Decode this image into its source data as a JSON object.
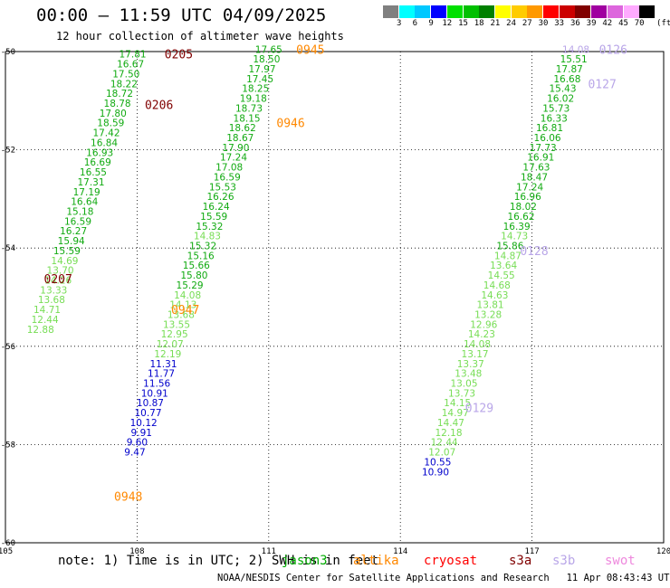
{
  "header": {
    "title": "00:00 — 11:59 UTC 04/09/2025",
    "subtitle": "12 hour collection of altimeter wave heights"
  },
  "colorbar": {
    "unit": "(ft)",
    "ticks": [
      "3",
      "6",
      "9",
      "12",
      "15",
      "18",
      "21",
      "24",
      "27",
      "30",
      "33",
      "36",
      "39",
      "42",
      "45",
      "70"
    ],
    "colors": [
      "#808080",
      "#00ffff",
      "#00c8ff",
      "#0000ff",
      "#00e000",
      "#00c000",
      "#008000",
      "#ffff00",
      "#ffcc00",
      "#ff9900",
      "#ff0000",
      "#cc0000",
      "#800000",
      "#a000a0",
      "#dd66dd",
      "#ffaaff",
      "#000000"
    ]
  },
  "axes": {
    "lat_labels": [
      "-50",
      "-52",
      "-54",
      "-56",
      "-58",
      "-60"
    ],
    "lon_labels": [
      "105",
      "108",
      "111",
      "114",
      "117",
      "120"
    ]
  },
  "note": "note: 1) Time is in UTC; 2) SWH is in feet",
  "legend": [
    {
      "name": "jason3",
      "color": "#00aa00"
    },
    {
      "name": "altika",
      "color": "#ff8800"
    },
    {
      "name": "cryosat",
      "color": "#ff0000"
    },
    {
      "name": "s3a",
      "color": "#800000"
    },
    {
      "name": "s3b",
      "color": "#b9a6e8"
    },
    {
      "name": "swot",
      "color": "#ee88dd"
    }
  ],
  "footer": "NOAA/NESDIS Center for Satellite Applications and Research   11 Apr 08:43:43 UTC 2025",
  "colors": {
    "green": "#11aa11",
    "lightgreen": "#77dd55",
    "blue": "#0000cc",
    "darkred": "#800000",
    "orange": "#ff8800",
    "lavender": "#b9a6e8"
  },
  "tracks": [
    {
      "id": "s3a",
      "labels": [
        {
          "text": "0205",
          "lat": -50.05,
          "lon": 108.95
        },
        {
          "text": "0206",
          "lat": -51.08,
          "lon": 108.5
        },
        {
          "text": "0207",
          "lat": -54.62,
          "lon": 106.2
        }
      ],
      "points": [
        {
          "lat": -50.05,
          "lon": 107.9,
          "v": "17.81",
          "c": "green"
        },
        {
          "lat": -50.25,
          "lon": 107.85,
          "v": "16.67",
          "c": "green"
        },
        {
          "lat": -50.45,
          "lon": 107.75,
          "v": "17.50",
          "c": "green"
        },
        {
          "lat": -50.65,
          "lon": 107.7,
          "v": "18.22",
          "c": "green"
        },
        {
          "lat": -50.85,
          "lon": 107.6,
          "v": "18.72",
          "c": "green"
        },
        {
          "lat": -51.05,
          "lon": 107.55,
          "v": "18.78",
          "c": "green"
        },
        {
          "lat": -51.25,
          "lon": 107.45,
          "v": "17.80",
          "c": "green"
        },
        {
          "lat": -51.45,
          "lon": 107.4,
          "v": "18.59",
          "c": "green"
        },
        {
          "lat": -51.65,
          "lon": 107.3,
          "v": "17.42",
          "c": "green"
        },
        {
          "lat": -51.85,
          "lon": 107.25,
          "v": "16.84",
          "c": "green"
        },
        {
          "lat": -52.05,
          "lon": 107.15,
          "v": "16.93",
          "c": "green"
        },
        {
          "lat": -52.25,
          "lon": 107.1,
          "v": "16.69",
          "c": "green"
        },
        {
          "lat": -52.45,
          "lon": 107.0,
          "v": "16.55",
          "c": "green"
        },
        {
          "lat": -52.65,
          "lon": 106.95,
          "v": "17.31",
          "c": "green"
        },
        {
          "lat": -52.85,
          "lon": 106.85,
          "v": "17.19",
          "c": "green"
        },
        {
          "lat": -53.05,
          "lon": 106.8,
          "v": "16.64",
          "c": "green"
        },
        {
          "lat": -53.25,
          "lon": 106.7,
          "v": "15.18",
          "c": "green"
        },
        {
          "lat": -53.45,
          "lon": 106.65,
          "v": "16.59",
          "c": "green"
        },
        {
          "lat": -53.65,
          "lon": 106.55,
          "v": "16.27",
          "c": "green"
        },
        {
          "lat": -53.85,
          "lon": 106.5,
          "v": "15.94",
          "c": "green"
        },
        {
          "lat": -54.05,
          "lon": 106.4,
          "v": "15.59",
          "c": "green"
        },
        {
          "lat": -54.25,
          "lon": 106.35,
          "v": "14.69",
          "c": "lightgreen"
        },
        {
          "lat": -54.45,
          "lon": 106.25,
          "v": "13.70",
          "c": "lightgreen"
        },
        {
          "lat": -54.65,
          "lon": 106.2,
          "v": "14.26",
          "c": "lightgreen"
        },
        {
          "lat": -54.85,
          "lon": 106.1,
          "v": "13.33",
          "c": "lightgreen"
        },
        {
          "lat": -55.05,
          "lon": 106.05,
          "v": "13.68",
          "c": "lightgreen"
        },
        {
          "lat": -55.25,
          "lon": 105.95,
          "v": "14.71",
          "c": "lightgreen"
        },
        {
          "lat": -55.45,
          "lon": 105.9,
          "v": "12.44",
          "c": "lightgreen"
        },
        {
          "lat": -55.65,
          "lon": 105.8,
          "v": "12.88",
          "c": "lightgreen"
        }
      ]
    },
    {
      "id": "altika",
      "labels": [
        {
          "text": "0945",
          "lat": -49.95,
          "lon": 111.95
        },
        {
          "text": "0946",
          "lat": -51.45,
          "lon": 111.5
        },
        {
          "text": "0947",
          "lat": -55.25,
          "lon": 109.1
        },
        {
          "text": "0948",
          "lat": -59.05,
          "lon": 107.8
        }
      ],
      "points": [
        {
          "lat": -49.95,
          "lon": 111.0,
          "v": "17.65",
          "c": "green"
        },
        {
          "lat": -50.15,
          "lon": 110.95,
          "v": "18.50",
          "c": "green"
        },
        {
          "lat": -50.35,
          "lon": 110.85,
          "v": "17.97",
          "c": "green"
        },
        {
          "lat": -50.55,
          "lon": 110.8,
          "v": "17.45",
          "c": "green"
        },
        {
          "lat": -50.75,
          "lon": 110.7,
          "v": "18.25",
          "c": "green"
        },
        {
          "lat": -50.95,
          "lon": 110.65,
          "v": "19.18",
          "c": "green"
        },
        {
          "lat": -51.15,
          "lon": 110.55,
          "v": "18.73",
          "c": "green"
        },
        {
          "lat": -51.35,
          "lon": 110.5,
          "v": "18.15",
          "c": "green"
        },
        {
          "lat": -51.55,
          "lon": 110.4,
          "v": "18.62",
          "c": "green"
        },
        {
          "lat": -51.75,
          "lon": 110.35,
          "v": "18.67",
          "c": "green"
        },
        {
          "lat": -51.95,
          "lon": 110.25,
          "v": "17.90",
          "c": "green"
        },
        {
          "lat": -52.15,
          "lon": 110.2,
          "v": "17.24",
          "c": "green"
        },
        {
          "lat": -52.35,
          "lon": 110.1,
          "v": "17.08",
          "c": "green"
        },
        {
          "lat": -52.55,
          "lon": 110.05,
          "v": "16.59",
          "c": "green"
        },
        {
          "lat": -52.75,
          "lon": 109.95,
          "v": "15.53",
          "c": "green"
        },
        {
          "lat": -52.95,
          "lon": 109.9,
          "v": "16.26",
          "c": "green"
        },
        {
          "lat": -53.15,
          "lon": 109.8,
          "v": "16.24",
          "c": "green"
        },
        {
          "lat": -53.35,
          "lon": 109.75,
          "v": "15.59",
          "c": "green"
        },
        {
          "lat": -53.55,
          "lon": 109.65,
          "v": "15.32",
          "c": "green"
        },
        {
          "lat": -53.75,
          "lon": 109.6,
          "v": "14.83",
          "c": "lightgreen"
        },
        {
          "lat": -53.95,
          "lon": 109.5,
          "v": "15.32",
          "c": "green"
        },
        {
          "lat": -54.15,
          "lon": 109.45,
          "v": "15.16",
          "c": "green"
        },
        {
          "lat": -54.35,
          "lon": 109.35,
          "v": "15.66",
          "c": "green"
        },
        {
          "lat": -54.55,
          "lon": 109.3,
          "v": "15.80",
          "c": "green"
        },
        {
          "lat": -54.75,
          "lon": 109.2,
          "v": "15.29",
          "c": "green"
        },
        {
          "lat": -54.95,
          "lon": 109.15,
          "v": "14.08",
          "c": "lightgreen"
        },
        {
          "lat": -55.15,
          "lon": 109.05,
          "v": "14.13",
          "c": "lightgreen"
        },
        {
          "lat": -55.35,
          "lon": 109.0,
          "v": "13.68",
          "c": "lightgreen"
        },
        {
          "lat": -55.55,
          "lon": 108.9,
          "v": "13.55",
          "c": "lightgreen"
        },
        {
          "lat": -55.75,
          "lon": 108.85,
          "v": "12.95",
          "c": "lightgreen"
        },
        {
          "lat": -55.95,
          "lon": 108.75,
          "v": "12.07",
          "c": "lightgreen"
        },
        {
          "lat": -56.15,
          "lon": 108.7,
          "v": "12.19",
          "c": "lightgreen"
        },
        {
          "lat": -56.35,
          "lon": 108.6,
          "v": "11.31",
          "c": "blue"
        },
        {
          "lat": -56.55,
          "lon": 108.55,
          "v": "11.77",
          "c": "blue"
        },
        {
          "lat": -56.75,
          "lon": 108.45,
          "v": "11.56",
          "c": "blue"
        },
        {
          "lat": -56.95,
          "lon": 108.4,
          "v": "10.91",
          "c": "blue"
        },
        {
          "lat": -57.15,
          "lon": 108.3,
          "v": "10.87",
          "c": "blue"
        },
        {
          "lat": -57.35,
          "lon": 108.25,
          "v": "10.77",
          "c": "blue"
        },
        {
          "lat": -57.55,
          "lon": 108.15,
          "v": "10.12",
          "c": "blue"
        },
        {
          "lat": -57.75,
          "lon": 108.1,
          "v": "9.91",
          "c": "blue"
        },
        {
          "lat": -57.95,
          "lon": 108.0,
          "v": "9.60",
          "c": "blue"
        },
        {
          "lat": -58.15,
          "lon": 107.95,
          "v": "9.47",
          "c": "blue"
        }
      ]
    },
    {
      "id": "s3b",
      "labels": [
        {
          "text": "0126",
          "lat": -49.95,
          "lon": 118.85
        },
        {
          "text": "0127",
          "lat": -50.65,
          "lon": 118.6
        },
        {
          "text": "0128",
          "lat": -54.05,
          "lon": 117.05
        },
        {
          "text": "0129",
          "lat": -57.25,
          "lon": 115.8
        }
      ],
      "points": [
        {
          "lat": -49.95,
          "lon": 118.0,
          "v": "14.08",
          "c": "lavender"
        },
        {
          "lat": -50.15,
          "lon": 117.95,
          "v": "15.51",
          "c": "green"
        },
        {
          "lat": -50.35,
          "lon": 117.85,
          "v": "17.87",
          "c": "green"
        },
        {
          "lat": -50.55,
          "lon": 117.8,
          "v": "16.68",
          "c": "green"
        },
        {
          "lat": -50.75,
          "lon": 117.7,
          "v": "15.43",
          "c": "green"
        },
        {
          "lat": -50.95,
          "lon": 117.65,
          "v": "16.02",
          "c": "green"
        },
        {
          "lat": -51.15,
          "lon": 117.55,
          "v": "15.73",
          "c": "green"
        },
        {
          "lat": -51.35,
          "lon": 117.5,
          "v": "16.33",
          "c": "green"
        },
        {
          "lat": -51.55,
          "lon": 117.4,
          "v": "16.81",
          "c": "green"
        },
        {
          "lat": -51.75,
          "lon": 117.35,
          "v": "16.06",
          "c": "green"
        },
        {
          "lat": -51.95,
          "lon": 117.25,
          "v": "17.73",
          "c": "green"
        },
        {
          "lat": -52.15,
          "lon": 117.2,
          "v": "16.91",
          "c": "green"
        },
        {
          "lat": -52.35,
          "lon": 117.1,
          "v": "17.63",
          "c": "green"
        },
        {
          "lat": -52.55,
          "lon": 117.05,
          "v": "18.47",
          "c": "green"
        },
        {
          "lat": -52.75,
          "lon": 116.95,
          "v": "17.24",
          "c": "green"
        },
        {
          "lat": -52.95,
          "lon": 116.9,
          "v": "16.96",
          "c": "green"
        },
        {
          "lat": -53.15,
          "lon": 116.8,
          "v": "18.02",
          "c": "green"
        },
        {
          "lat": -53.35,
          "lon": 116.75,
          "v": "16.62",
          "c": "green"
        },
        {
          "lat": -53.55,
          "lon": 116.65,
          "v": "16.39",
          "c": "green"
        },
        {
          "lat": -53.75,
          "lon": 116.6,
          "v": "14.73",
          "c": "lightgreen"
        },
        {
          "lat": -53.95,
          "lon": 116.5,
          "v": "15.86",
          "c": "green"
        },
        {
          "lat": -54.15,
          "lon": 116.45,
          "v": "14.87",
          "c": "lightgreen"
        },
        {
          "lat": -54.35,
          "lon": 116.35,
          "v": "13.64",
          "c": "lightgreen"
        },
        {
          "lat": -54.55,
          "lon": 116.3,
          "v": "14.55",
          "c": "lightgreen"
        },
        {
          "lat": -54.75,
          "lon": 116.2,
          "v": "14.68",
          "c": "lightgreen"
        },
        {
          "lat": -54.95,
          "lon": 116.15,
          "v": "14.63",
          "c": "lightgreen"
        },
        {
          "lat": -55.15,
          "lon": 116.05,
          "v": "13.81",
          "c": "lightgreen"
        },
        {
          "lat": -55.35,
          "lon": 116.0,
          "v": "13.28",
          "c": "lightgreen"
        },
        {
          "lat": -55.55,
          "lon": 115.9,
          "v": "12.96",
          "c": "lightgreen"
        },
        {
          "lat": -55.75,
          "lon": 115.85,
          "v": "14.23",
          "c": "lightgreen"
        },
        {
          "lat": -55.95,
          "lon": 115.75,
          "v": "14.08",
          "c": "lightgreen"
        },
        {
          "lat": -56.15,
          "lon": 115.7,
          "v": "13.17",
          "c": "lightgreen"
        },
        {
          "lat": -56.35,
          "lon": 115.6,
          "v": "13.37",
          "c": "lightgreen"
        },
        {
          "lat": -56.55,
          "lon": 115.55,
          "v": "13.48",
          "c": "lightgreen"
        },
        {
          "lat": -56.75,
          "lon": 115.45,
          "v": "13.05",
          "c": "lightgreen"
        },
        {
          "lat": -56.95,
          "lon": 115.4,
          "v": "13.73",
          "c": "lightgreen"
        },
        {
          "lat": -57.15,
          "lon": 115.3,
          "v": "14.15",
          "c": "lightgreen"
        },
        {
          "lat": -57.35,
          "lon": 115.25,
          "v": "14.97",
          "c": "lightgreen"
        },
        {
          "lat": -57.55,
          "lon": 115.15,
          "v": "14.47",
          "c": "lightgreen"
        },
        {
          "lat": -57.75,
          "lon": 115.1,
          "v": "12.18",
          "c": "lightgreen"
        },
        {
          "lat": -57.95,
          "lon": 115.0,
          "v": "12.44",
          "c": "lightgreen"
        },
        {
          "lat": -58.15,
          "lon": 114.95,
          "v": "12.07",
          "c": "lightgreen"
        },
        {
          "lat": -58.35,
          "lon": 114.85,
          "v": "10.55",
          "c": "blue"
        },
        {
          "lat": -58.55,
          "lon": 114.8,
          "v": "10.90",
          "c": "blue"
        }
      ]
    }
  ]
}
